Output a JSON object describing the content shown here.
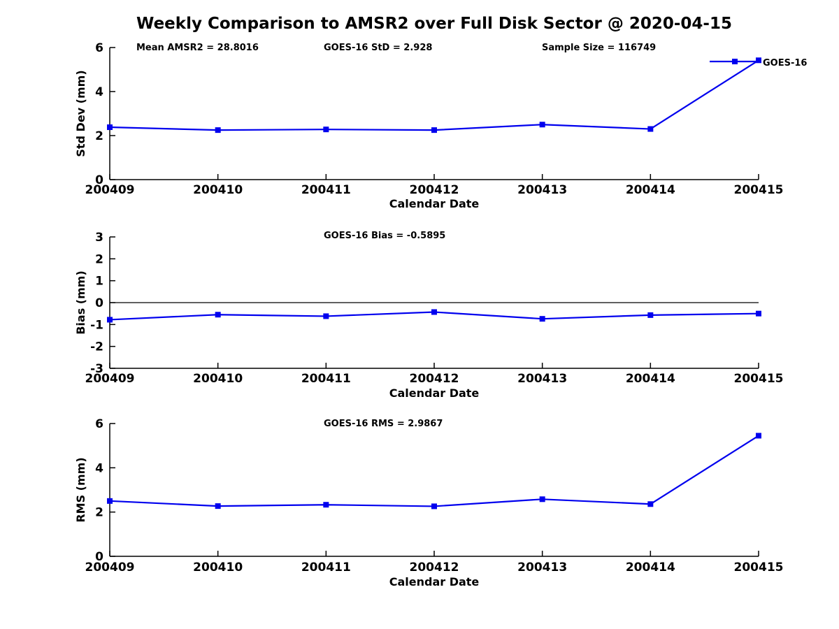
{
  "title": "Weekly Comparison to AMSR2 over Full Disk Sector @ 2020-04-15",
  "colors": {
    "line": "#0000EE",
    "axis": "#000000",
    "text": "#000000",
    "background": "#FFFFFF"
  },
  "chart_data": [
    {
      "type": "line",
      "name": "std-dev-plot",
      "categories": [
        "200409",
        "200410",
        "200411",
        "200412",
        "200413",
        "200414",
        "200415"
      ],
      "series": [
        {
          "name": "GOES-16",
          "values": [
            2.38,
            2.25,
            2.28,
            2.25,
            2.5,
            2.3,
            5.42
          ]
        }
      ],
      "xlabel": "Calendar Date",
      "ylabel": "Std Dev (mm)",
      "ylim": [
        0,
        6
      ],
      "yticks": [
        0,
        2,
        4,
        6
      ],
      "grid": false,
      "zero_line": false,
      "legend": {
        "label": "GOES-16",
        "position": "top-right"
      },
      "annotations": [
        {
          "text": "Mean AMSR2 = 28.8016",
          "x": 195
        },
        {
          "text": "GOES-16 StD = 2.928",
          "x": 463
        },
        {
          "text": "Sample Size = 116749",
          "x": 775
        }
      ]
    },
    {
      "type": "line",
      "name": "bias-plot",
      "categories": [
        "200409",
        "200410",
        "200411",
        "200412",
        "200413",
        "200414",
        "200415"
      ],
      "series": [
        {
          "name": "GOES-16",
          "values": [
            -0.78,
            -0.55,
            -0.62,
            -0.43,
            -0.74,
            -0.57,
            -0.5
          ]
        }
      ],
      "xlabel": "Calendar Date",
      "ylabel": "Bias (mm)",
      "ylim": [
        -3,
        3
      ],
      "yticks": [
        -3,
        -2,
        -1,
        0,
        1,
        2,
        3
      ],
      "grid": false,
      "zero_line": true,
      "legend": null,
      "annotations": [
        {
          "text": "GOES-16 Bias  = -0.5895",
          "x": 463
        }
      ]
    },
    {
      "type": "line",
      "name": "rms-plot",
      "categories": [
        "200409",
        "200410",
        "200411",
        "200412",
        "200413",
        "200414",
        "200415"
      ],
      "series": [
        {
          "name": "GOES-16",
          "values": [
            2.5,
            2.27,
            2.33,
            2.26,
            2.58,
            2.36,
            5.45
          ]
        }
      ],
      "xlabel": "Calendar Date",
      "ylabel": "RMS (mm)",
      "ylim": [
        0,
        6
      ],
      "yticks": [
        0,
        2,
        4,
        6
      ],
      "grid": false,
      "zero_line": false,
      "legend": null,
      "annotations": [
        {
          "text": "GOES-16 RMS = 2.9867",
          "x": 463
        }
      ]
    }
  ]
}
